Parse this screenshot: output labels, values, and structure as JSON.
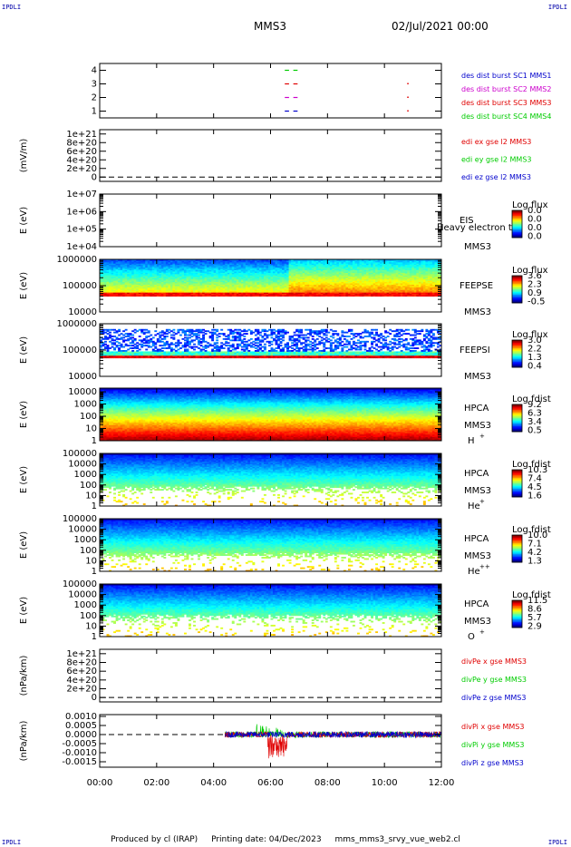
{
  "corners": {
    "tl": "IPDLI",
    "tr": "IPDLI",
    "bl": "IPDLI",
    "br": "IPDLI"
  },
  "header": {
    "spacecraft": "MMS3",
    "date": "02/Jul/2021 00:00"
  },
  "footer": {
    "produced": "Produced by cl (IRAP)",
    "printing": "Printing date: 04/Dec/2023",
    "file": "mms_mms3_srvy_vue_web2.cl"
  },
  "colors": {
    "red": "#e00000",
    "green": "#00cc00",
    "blue": "#0000cc",
    "magenta": "#cc00cc",
    "spec_bg": "#0000bb"
  },
  "chart_data": [
    {
      "id": "burst",
      "type": "line",
      "ylim": [
        0.5,
        4.5
      ],
      "yticks": [
        {
          "v": 1,
          "l": "1"
        },
        {
          "v": 2,
          "l": "2"
        },
        {
          "v": 3,
          "l": "3"
        },
        {
          "v": 4,
          "l": "4"
        }
      ],
      "series": [
        {
          "name": "des dist burst SC1 MMS1",
          "color": "#0000cc",
          "level": 1,
          "segments": [
            [
              6.5,
              6.65
            ],
            [
              6.8,
              6.95
            ]
          ]
        },
        {
          "name": "des dist burst SC2 MMS2",
          "color": "#cc00cc",
          "level": 2,
          "segments": [
            [
              6.5,
              6.65
            ],
            [
              6.8,
              6.95
            ]
          ]
        },
        {
          "name": "des dist burst SC3 MMS3",
          "color": "#e00000",
          "level": 3,
          "segments": [
            [
              6.5,
              6.65
            ],
            [
              6.8,
              6.95
            ]
          ]
        },
        {
          "name": "des dist burst SC4 MMS4",
          "color": "#00cc00",
          "level": 4,
          "segments": [
            [
              6.5,
              6.65
            ],
            [
              6.8,
              6.95
            ]
          ]
        }
      ],
      "points": [
        {
          "x": 10.8,
          "y": 3,
          "color": "#e00000"
        },
        {
          "x": 10.8,
          "y": 2,
          "color": "#e00000"
        },
        {
          "x": 10.8,
          "y": 1,
          "color": "#e00000"
        }
      ]
    },
    {
      "id": "edi",
      "type": "line",
      "ylabel": "(mV/m)",
      "ylim": [
        -1e+20,
        1.1e+21
      ],
      "yticks": [
        {
          "v": 1e+21,
          "l": "1e+21"
        },
        {
          "v": 8e+20,
          "l": "8e+20"
        },
        {
          "v": 6e+20,
          "l": "6e+20"
        },
        {
          "v": 4e+20,
          "l": "4e+20"
        },
        {
          "v": 2e+20,
          "l": "2e+20"
        },
        {
          "v": 0,
          "l": "0"
        }
      ],
      "zero_line": true,
      "series": [
        {
          "name": "edi ex gse l2 MMS3",
          "color": "#e00000"
        },
        {
          "name": "edi ey gse l2 MMS3",
          "color": "#00cc00"
        },
        {
          "name": "edi ez gse l2 MMS3",
          "color": "#0000cc"
        }
      ]
    },
    {
      "id": "eis",
      "type": "heatmap",
      "ylabel": "E (eV)",
      "log": true,
      "ylim": [
        10000.0,
        10000000.0
      ],
      "yticks": [
        {
          "v": 10000000.0,
          "l": "1e+07"
        },
        {
          "v": 1000000.0,
          "l": "1e+06"
        },
        {
          "v": 100000.0,
          "l": "1e+05"
        },
        {
          "v": 10000.0,
          "l": "1e+04"
        }
      ],
      "instrument": "EIS",
      "species": "Heavy electron tof",
      "sc": "MMS3",
      "cbar": {
        "title": "Log flux",
        "labels": [
          "0.0",
          "0.0",
          "0.0",
          "0.0"
        ]
      },
      "empty": true
    },
    {
      "id": "feepse",
      "type": "heatmap",
      "ylabel": "E (eV)",
      "log": true,
      "ylim": [
        10000.0,
        1000000.0
      ],
      "yticks": [
        {
          "v": 1000000.0,
          "l": "1000000"
        },
        {
          "v": 100000.0,
          "l": "100000"
        },
        {
          "v": 10000.0,
          "l": "10000"
        }
      ],
      "instrument": "FEEPSE",
      "sc": "MMS3",
      "cbar": {
        "title": "Log flux",
        "labels": [
          "3.6",
          "2.3",
          "0.9",
          "-0.5"
        ]
      },
      "data_range": [
        60000.0,
        1000000.0
      ],
      "low_band": [
        38000.0,
        55000.0
      ]
    },
    {
      "id": "feepsi",
      "type": "heatmap",
      "ylabel": "E (eV)",
      "log": true,
      "ylim": [
        10000.0,
        1000000.0
      ],
      "yticks": [
        {
          "v": 1000000.0,
          "l": "1000000"
        },
        {
          "v": 100000.0,
          "l": "100000"
        },
        {
          "v": 10000.0,
          "l": "10000"
        }
      ],
      "instrument": "FEEPSI",
      "sc": "MMS3",
      "cbar": {
        "title": "Log flux",
        "labels": [
          "3.0",
          "2.2",
          "1.3",
          "0.4"
        ]
      },
      "data_range": [
        55000.0,
        600000.0
      ],
      "low_band": [
        52000.0,
        62000.0
      ]
    },
    {
      "id": "hpca_h",
      "type": "heatmap",
      "ylabel": "E (eV)",
      "log": true,
      "ylim": [
        1,
        20000.0
      ],
      "yticks": [
        {
          "v": 10000.0,
          "l": "10000"
        },
        {
          "v": 1000.0,
          "l": "1000"
        },
        {
          "v": 100,
          "l": "100"
        },
        {
          "v": 10,
          "l": "10"
        },
        {
          "v": 1,
          "l": "1"
        }
      ],
      "instrument": "HPCA",
      "sc": "MMS3",
      "species": "H",
      "sup": "+",
      "cbar": {
        "title": "Log fdist",
        "labels": [
          "9.2",
          "6.3",
          "3.4",
          "0.5"
        ]
      },
      "profile": "h"
    },
    {
      "id": "hpca_he",
      "type": "heatmap",
      "ylabel": "E (eV)",
      "log": true,
      "ylim": [
        1,
        100000.0
      ],
      "yticks": [
        {
          "v": 100000.0,
          "l": "100000"
        },
        {
          "v": 10000.0,
          "l": "10000"
        },
        {
          "v": 1000.0,
          "l": "1000"
        },
        {
          "v": 100,
          "l": "100"
        },
        {
          "v": 10,
          "l": "10"
        },
        {
          "v": 1,
          "l": "1"
        }
      ],
      "instrument": "HPCA",
      "sc": "MMS3",
      "species": "He",
      "sup": "+",
      "cbar": {
        "title": "Log fdist",
        "labels": [
          "10.3",
          "7.4",
          "4.5",
          "1.6"
        ]
      },
      "profile": "he"
    },
    {
      "id": "hpca_hepp",
      "type": "heatmap",
      "ylabel": "E (eV)",
      "log": true,
      "ylim": [
        1,
        100000.0
      ],
      "yticks": [
        {
          "v": 100000.0,
          "l": "100000"
        },
        {
          "v": 10000.0,
          "l": "10000"
        },
        {
          "v": 1000.0,
          "l": "1000"
        },
        {
          "v": 100,
          "l": "100"
        },
        {
          "v": 10,
          "l": "10"
        },
        {
          "v": 1,
          "l": "1"
        }
      ],
      "instrument": "HPCA",
      "sc": "MMS3",
      "species": "He",
      "sup": "++",
      "cbar": {
        "title": "Log fdist",
        "labels": [
          "10.0",
          "7.1",
          "4.2",
          "1.3"
        ]
      },
      "profile": "hepp"
    },
    {
      "id": "hpca_o",
      "type": "heatmap",
      "ylabel": "E (eV)",
      "log": true,
      "ylim": [
        1,
        100000.0
      ],
      "yticks": [
        {
          "v": 100000.0,
          "l": "100000"
        },
        {
          "v": 10000.0,
          "l": "10000"
        },
        {
          "v": 1000.0,
          "l": "1000"
        },
        {
          "v": 100,
          "l": "100"
        },
        {
          "v": 10,
          "l": "10"
        },
        {
          "v": 1,
          "l": "1"
        }
      ],
      "instrument": "HPCA",
      "sc": "MMS3",
      "species": "O",
      "sup": "+",
      "cbar": {
        "title": "Log fdist",
        "labels": [
          "11.5",
          "8.6",
          "5.7",
          "2.9"
        ]
      },
      "profile": "o"
    },
    {
      "id": "divpe",
      "type": "line",
      "ylabel": "(nPa/km)",
      "ylim": [
        -1e+20,
        1.1e+21
      ],
      "yticks": [
        {
          "v": 1e+21,
          "l": "1e+21"
        },
        {
          "v": 8e+20,
          "l": "8e+20"
        },
        {
          "v": 6e+20,
          "l": "6e+20"
        },
        {
          "v": 4e+20,
          "l": "4e+20"
        },
        {
          "v": 2e+20,
          "l": "2e+20"
        },
        {
          "v": 0,
          "l": "0"
        }
      ],
      "zero_line": true,
      "series": [
        {
          "name": "divPe x gse MMS3",
          "color": "#e00000"
        },
        {
          "name": "divPe y gse MMS3",
          "color": "#00cc00"
        },
        {
          "name": "divPe z gse MMS3",
          "color": "#0000cc"
        }
      ]
    },
    {
      "id": "divpi",
      "type": "line",
      "ylabel": "(nPa/km)",
      "ylim": [
        -0.0018,
        0.0011
      ],
      "yticks": [
        {
          "v": 0.001,
          "l": "0.0010"
        },
        {
          "v": 0.0005,
          "l": "0.0005"
        },
        {
          "v": 0,
          "l": "0.0000"
        },
        {
          "v": -0.0005,
          "l": "-0.0005"
        },
        {
          "v": -0.001,
          "l": "-0.0010"
        },
        {
          "v": -0.0015,
          "l": "-0.0015"
        }
      ],
      "zero_line": true,
      "data_start": 4.4,
      "series": [
        {
          "name": "divPi x gse MMS3",
          "color": "#e00000"
        },
        {
          "name": "divPi y gse MMS3",
          "color": "#00cc00"
        },
        {
          "name": "divPi z gse MMS3",
          "color": "#0000cc"
        }
      ]
    }
  ],
  "xaxis": {
    "range": [
      0,
      12
    ],
    "ticks": [
      {
        "v": 0,
        "l": "00:00"
      },
      {
        "v": 2,
        "l": "02:00"
      },
      {
        "v": 4,
        "l": "04:00"
      },
      {
        "v": 6,
        "l": "06:00"
      },
      {
        "v": 8,
        "l": "08:00"
      },
      {
        "v": 10,
        "l": "10:00"
      },
      {
        "v": 12,
        "l": "12:00"
      }
    ]
  }
}
